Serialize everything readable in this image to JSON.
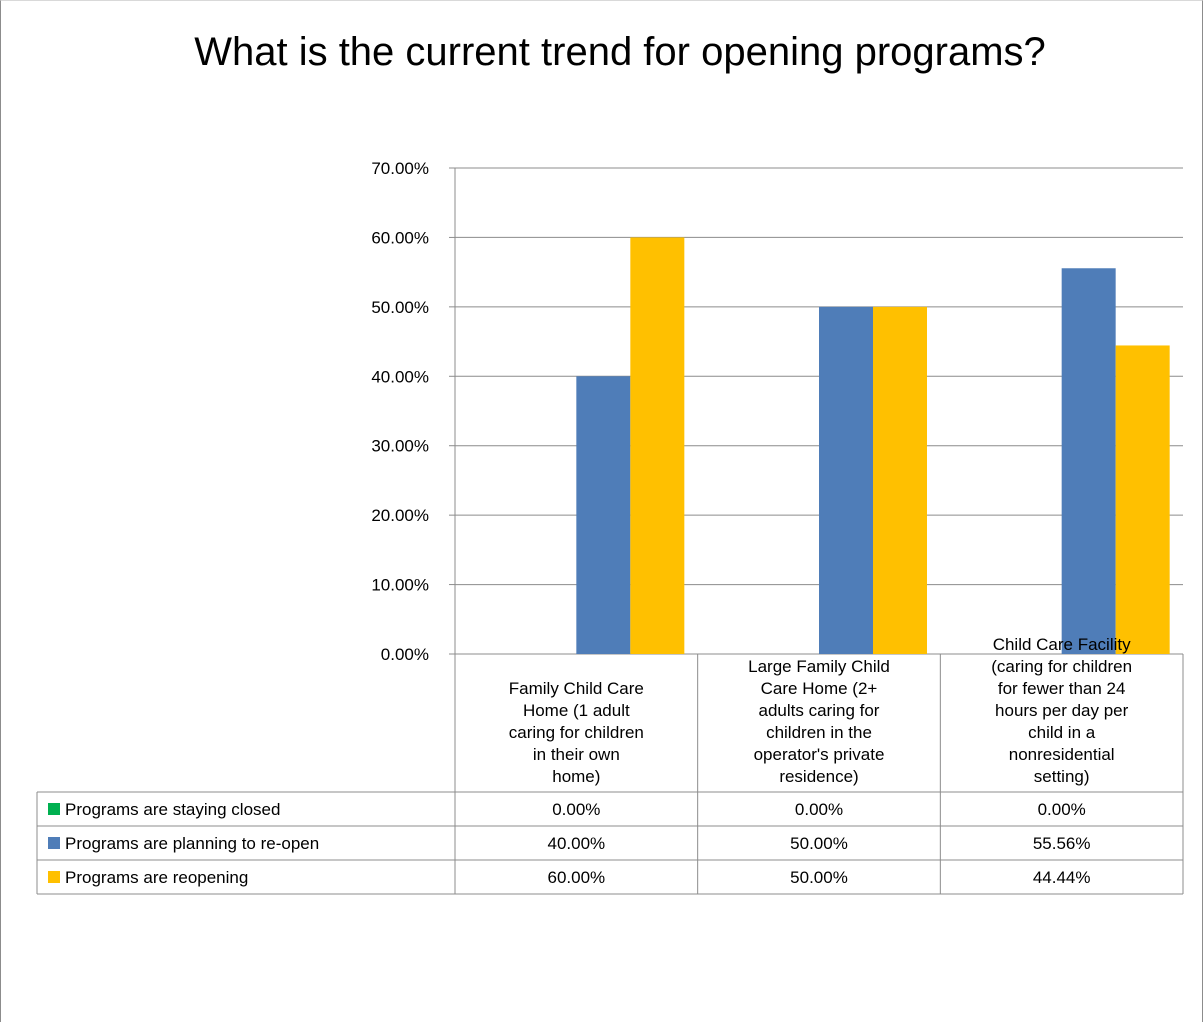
{
  "chart_data": {
    "type": "bar",
    "title": "What is the current trend for opening programs?",
    "categories": [
      "Family Child Care Home (1 adult caring for children in their own home)",
      "Large Family Child Care Home (2+ adults caring for children in the operator's private residence)",
      "Child Care Facility (caring for children for fewer than 24 hours per day per child in a nonresidential setting)"
    ],
    "category_lines": [
      [
        "Family Child Care",
        "Home (1 adult",
        "caring for children",
        "in their own",
        "home)"
      ],
      [
        "Large Family Child",
        "Care Home (2+",
        "adults caring for",
        "children in the",
        "operator's private",
        "residence)"
      ],
      [
        "Child Care Facility",
        "(caring for children",
        "for fewer than 24",
        "hours per day per",
        "child in a",
        "nonresidential",
        "setting)"
      ]
    ],
    "series": [
      {
        "name": "Programs are staying closed",
        "values": [
          0,
          0,
          0
        ],
        "labels": [
          "0.00%",
          "0.00%",
          "0.00%"
        ],
        "color": "#00b050"
      },
      {
        "name": "Programs are planning to re-open",
        "values": [
          40,
          50,
          55.56
        ],
        "labels": [
          "40.00%",
          "50.00%",
          "55.56%"
        ],
        "color": "#4f7db8"
      },
      {
        "name": "Programs are reopening",
        "values": [
          60,
          50,
          44.44
        ],
        "labels": [
          "60.00%",
          "50.00%",
          "44.44%"
        ],
        "color": "#ffc000"
      }
    ],
    "ylim": [
      0,
      70
    ],
    "yticks": [
      0,
      10,
      20,
      30,
      40,
      50,
      60,
      70
    ],
    "ytick_labels": [
      "0.00%",
      "10.00%",
      "20.00%",
      "30.00%",
      "40.00%",
      "50.00%",
      "60.00%",
      "70.00%"
    ],
    "grid": true,
    "legend": "data-table"
  }
}
